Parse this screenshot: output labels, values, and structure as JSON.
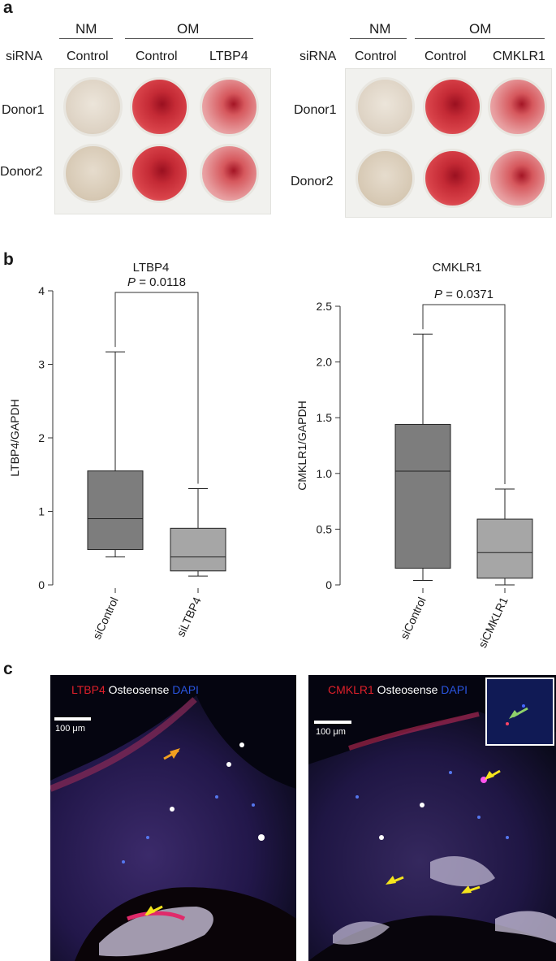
{
  "panel_a": {
    "letter": "a",
    "left": {
      "groups": [
        "NM",
        "OM"
      ],
      "sirna_label": "siRNA",
      "columns": [
        "Control",
        "Control",
        "LTBP4"
      ],
      "rows": [
        "Donor1",
        "Donor2"
      ]
    },
    "right": {
      "groups": [
        "NM",
        "OM"
      ],
      "sirna_label": "siRNA",
      "columns": [
        "Control",
        "Control",
        "CMKLR1"
      ],
      "rows": [
        "Donor1",
        "Donor2"
      ]
    }
  },
  "panel_b": {
    "letter": "b"
  },
  "chart_data": [
    {
      "type": "box",
      "title": "LTBP4",
      "ylabel": "LTBP4/GAPDH",
      "ylim": [
        0,
        4
      ],
      "yticks": [
        "0",
        "1",
        "2",
        "3",
        "4"
      ],
      "categories": [
        "siControl",
        "siLTBP4"
      ],
      "boxes": [
        {
          "min": 0.38,
          "q1": 0.48,
          "median": 0.9,
          "q3": 1.55,
          "max": 3.17
        },
        {
          "min": 0.12,
          "q1": 0.19,
          "median": 0.38,
          "q3": 0.77,
          "max": 1.31
        }
      ],
      "annotation": {
        "italic": "P",
        "text": " = 0.0118"
      },
      "colors": [
        "#7d7d7d",
        "#a6a6a6"
      ]
    },
    {
      "type": "box",
      "title": "CMKLR1",
      "ylabel": "CMKLR1/GAPDH",
      "ylim": [
        0,
        2.5
      ],
      "yticks": [
        "0",
        "0.5",
        "1.0",
        "1.5",
        "2.0",
        "2.5"
      ],
      "categories": [
        "siControl",
        "siCMKLR1"
      ],
      "boxes": [
        {
          "min": 0.04,
          "q1": 0.15,
          "median": 1.02,
          "q3": 1.44,
          "max": 2.25
        },
        {
          "min": 0.0,
          "q1": 0.06,
          "median": 0.29,
          "q3": 0.59,
          "max": 0.86
        }
      ],
      "annotation": {
        "italic": "P",
        "text": " = 0.0371"
      },
      "colors": [
        "#7d7d7d",
        "#a6a6a6"
      ]
    }
  ],
  "panel_c": {
    "letter": "c",
    "left": {
      "stain1": "LTBP4",
      "stain2": " Osteosense ",
      "stain3": "DAPI",
      "scale": "100 μm"
    },
    "right": {
      "stain1": "CMKLR1",
      "stain2": " Osteosense ",
      "stain3": "DAPI",
      "scale": "100 μm"
    },
    "colors": {
      "stain1": "#e0202a",
      "stain2": "#ffffff",
      "stain3": "#2a55e0",
      "arrow_left": "#f2a020",
      "arrow_right": "#f5e51c",
      "arrow_inset": "#8fd26a"
    }
  }
}
